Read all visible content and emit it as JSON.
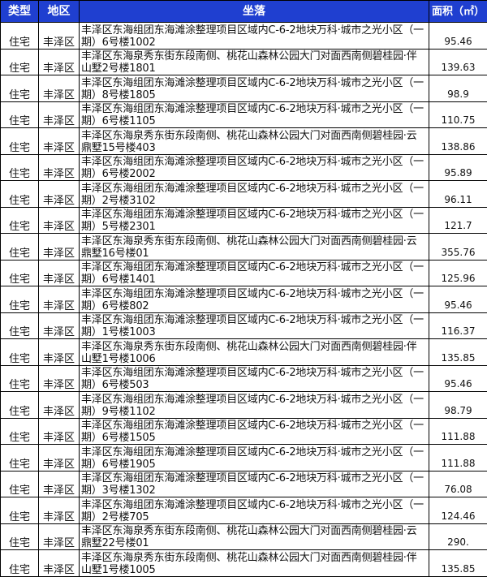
{
  "header": {
    "type": "类型",
    "region": "地区",
    "location": "坐落",
    "area": "面积（㎡）"
  },
  "colors": {
    "header_bg": "#1f3fd0",
    "header_text": "#ffffff"
  },
  "rows": [
    {
      "type": "住宅",
      "region": "丰泽区",
      "location": "丰泽区东海组团东海滩涂整理项目区域内C-6-2地块万科·城市之光小区（一期）6号楼1002",
      "area": "95.46"
    },
    {
      "type": "住宅",
      "region": "丰泽区",
      "location": "丰泽区东海泉秀东街东段南侧、桃花山森林公园大门对面西南侧碧桂园·伴山墅2号楼1801",
      "area": "139.63"
    },
    {
      "type": "住宅",
      "region": "丰泽区",
      "location": "丰泽区东海组团东海滩涂整理项目区域内C-6-2地块万科·城市之光小区（一期）8号楼1805",
      "area": "98.9"
    },
    {
      "type": "住宅",
      "region": "丰泽区",
      "location": "丰泽区东海组团东海滩涂整理项目区域内C-6-2地块万科·城市之光小区（一期）6号楼1105",
      "area": "110.75"
    },
    {
      "type": "住宅",
      "region": "丰泽区",
      "location": "丰泽区东海泉秀东街东段南侧、桃花山森林公园大门对面西南侧碧桂园·云鼎墅15号楼403",
      "area": "138.86"
    },
    {
      "type": "住宅",
      "region": "丰泽区",
      "location": "丰泽区东海组团东海滩涂整理项目区域内C-6-2地块万科·城市之光小区（一期）6号楼2002",
      "area": "95.89"
    },
    {
      "type": "住宅",
      "region": "丰泽区",
      "location": "丰泽区东海组团东海滩涂整理项目区域内C-6-2地块万科·城市之光小区（一期）2号楼3102",
      "area": "96.11"
    },
    {
      "type": "住宅",
      "region": "丰泽区",
      "location": "丰泽区东海组团东海滩涂整理项目区域内C-6-2地块万科·城市之光小区（一期）5号楼2301",
      "area": "121.7"
    },
    {
      "type": "住宅",
      "region": "丰泽区",
      "location": "丰泽区东海泉秀东街东段南侧、桃花山森林公园大门对面西南侧碧桂园·云鼎墅16号楼01",
      "area": "355.76"
    },
    {
      "type": "住宅",
      "region": "丰泽区",
      "location": "丰泽区东海组团东海滩涂整理项目区域内C-6-2地块万科·城市之光小区（一期）6号楼1401",
      "area": "125.96"
    },
    {
      "type": "住宅",
      "region": "丰泽区",
      "location": "丰泽区东海组团东海滩涂整理项目区域内C-6-2地块万科·城市之光小区（一期）6号楼802",
      "area": "95.46"
    },
    {
      "type": "住宅",
      "region": "丰泽区",
      "location": "丰泽区东海组团东海滩涂整理项目区域内C-6-2地块万科·城市之光小区（一期）1号楼1003",
      "area": "116.37"
    },
    {
      "type": "住宅",
      "region": "丰泽区",
      "location": "丰泽区东海泉秀东街东段南侧、桃花山森林公园大门对面西南侧碧桂园·伴山墅1号楼1006",
      "area": "135.85"
    },
    {
      "type": "住宅",
      "region": "丰泽区",
      "location": "丰泽区东海组团东海滩涂整理项目区域内C-6-2地块万科·城市之光小区（一期）6号楼503",
      "area": "95.46"
    },
    {
      "type": "住宅",
      "region": "丰泽区",
      "location": "丰泽区东海组团东海滩涂整理项目区域内C-6-2地块万科·城市之光小区（一期）9号楼1102",
      "area": "98.79"
    },
    {
      "type": "住宅",
      "region": "丰泽区",
      "location": "丰泽区东海组团东海滩涂整理项目区域内C-6-2地块万科·城市之光小区（一期）6号楼1505",
      "area": "111.88"
    },
    {
      "type": "住宅",
      "region": "丰泽区",
      "location": "丰泽区东海组团东海滩涂整理项目区域内C-6-2地块万科·城市之光小区（一期）6号楼1905",
      "area": "111.88"
    },
    {
      "type": "住宅",
      "region": "丰泽区",
      "location": "丰泽区东海组团东海滩涂整理项目区域内C-6-2地块万科·城市之光小区（一期）3号楼1302",
      "area": "76.08"
    },
    {
      "type": "住宅",
      "region": "丰泽区",
      "location": "丰泽区东海组团东海滩涂整理项目区域内C-6-2地块万科·城市之光小区（一期）2号楼705",
      "area": "124.46"
    },
    {
      "type": "住宅",
      "region": "丰泽区",
      "location": "丰泽区东海泉秀东街东段南侧、桃花山森林公园大门对面西南侧碧桂园·云鼎墅22号楼01",
      "area": "290."
    },
    {
      "type": "住宅",
      "region": "丰泽区",
      "location": "丰泽区东海泉秀东街东段南侧、桃花山森林公园大门对面西南侧碧桂园·伴山墅1号楼1005",
      "area": "135.85"
    }
  ]
}
